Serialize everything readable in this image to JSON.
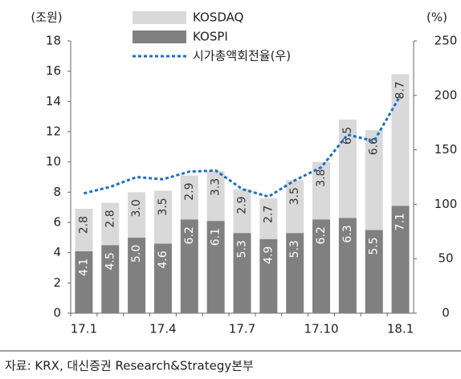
{
  "chart_data": {
    "type": "bar",
    "stacked": true,
    "y_unit": "(조원)",
    "y2_unit": "(%)",
    "categories": [
      "17.1",
      null,
      null,
      "17.4",
      null,
      null,
      "17.7",
      null,
      null,
      "17.10",
      null,
      null,
      "18.1"
    ],
    "series": [
      {
        "name": "KOSPI",
        "color": "#808080",
        "values": [
          4.1,
          4.5,
          5.0,
          4.6,
          6.2,
          6.1,
          5.3,
          4.9,
          5.3,
          6.2,
          6.3,
          5.5,
          7.1
        ],
        "value_labels": [
          "4.1",
          "4.5",
          "5.0",
          "4.6",
          "6.2",
          "6.1",
          "5.3",
          "4.9",
          "5.3",
          "6.2",
          "6.3",
          "5.5",
          "7.1"
        ]
      },
      {
        "name": "KOSDAQ",
        "color": "#d9d9d9",
        "values": [
          2.8,
          2.8,
          3.0,
          3.5,
          2.9,
          3.3,
          2.9,
          2.7,
          3.5,
          3.8,
          6.5,
          6.6,
          8.7
        ],
        "value_labels": [
          "2.8",
          "2.8",
          "3.0",
          "3.5",
          "2.9",
          "3.3",
          "2.9",
          "2.7",
          "3.5",
          "3.8",
          "6.5",
          "6.6",
          "8.7"
        ]
      },
      {
        "name": "시가총액회전율(우)",
        "type": "line",
        "axis": "y2",
        "color": "#1f6fc0",
        "values": [
          110,
          116,
          125,
          123,
          130,
          131,
          114,
          107,
          122,
          134,
          164,
          158,
          200
        ]
      }
    ],
    "ylim": [
      0,
      18
    ],
    "yticks": [
      0,
      2,
      4,
      6,
      8,
      10,
      12,
      14,
      16,
      18
    ],
    "y2lim": [
      0,
      250
    ],
    "y2ticks": [
      0,
      50,
      100,
      150,
      200,
      250
    ],
    "source": "자료: KRX, 대신증권 Research&Strategy본부"
  }
}
